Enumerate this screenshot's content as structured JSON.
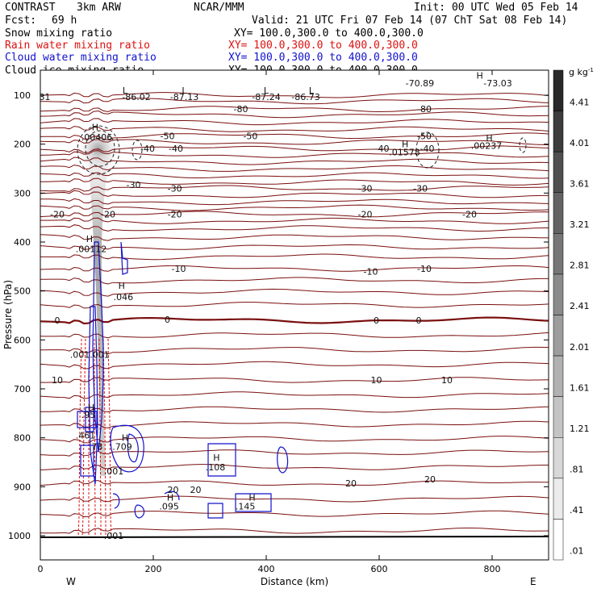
{
  "header": {
    "model": "CONTRAST",
    "config": "3km ARW",
    "org": "NCAR/MMM",
    "init": "Init: 00 UTC Wed 05 Feb 14",
    "fcst_label": "Fcst:",
    "fcst_value": "69 h",
    "valid": "Valid: 21 UTC Fri 07 Feb 14 (07 ChT Sat 08 Feb 14)"
  },
  "fields": [
    {
      "label": "Snow mixing ratio",
      "xy": "XY= 100.0,300.0 to 400.0,300.0",
      "color": "#000000"
    },
    {
      "label": "Rain water mixing ratio",
      "xy": "XY= 100.0,300.0 to 400.0,300.0",
      "color": "#dd1111"
    },
    {
      "label": "Cloud water mixing ratio",
      "xy": "XY= 100.0,300.0 to 400.0,300.0",
      "color": "#1111cc"
    },
    {
      "label": "Cloud ice mixing ratio",
      "xy": "XY= 100.0,300.0 to 400.0,300.0",
      "color": "#000000"
    }
  ],
  "colors": {
    "temperature": "#7a0f0f",
    "zero_isotherm": "#7a0f0f",
    "rain": "#dd1111",
    "cloud_water": "#1111cc",
    "ice": "#000000",
    "snow_shading": "#777777"
  },
  "chart_data": {
    "type": "contour cross-section",
    "xlabel": "Distance (km)",
    "ylabel": "Pressure (hPa)",
    "xlim": [
      0,
      900
    ],
    "ylim": [
      1045,
      50
    ],
    "x_ticks": [
      "0",
      "200",
      "400",
      "600",
      "800"
    ],
    "y_ticks": [
      "100",
      "200",
      "300",
      "400",
      "500",
      "600",
      "700",
      "800",
      "900",
      "1000"
    ],
    "x_end_labels": {
      "left": "W",
      "right": "E"
    },
    "colorbar": {
      "unit": "g kg",
      "unit_exp": "-1",
      "ticks": [
        "4.41",
        "4.01",
        "3.61",
        "3.21",
        "2.81",
        "2.41",
        "2.01",
        "1.61",
        "1.21",
        ".81",
        ".41",
        ".01"
      ]
    },
    "temperature_contours": [
      {
        "label": "-80",
        "p": 128
      },
      {
        "label": "-50",
        "p": 183
      },
      {
        "label": "-40",
        "p": 209
      },
      {
        "label": "-30",
        "p": 290
      },
      {
        "label": "-20",
        "p": 343
      },
      {
        "label": "-10",
        "p": 454
      },
      {
        "label": "0",
        "p": 560
      },
      {
        "label": "10",
        "p": 682
      },
      {
        "label": "20",
        "p": 893
      }
    ],
    "contour_labels": [
      {
        "text": "-31",
        "x": 5,
        "p": 103
      },
      {
        "text": "-86.02",
        "x": 170,
        "p": 103
      },
      {
        "text": "-87.13",
        "x": 255,
        "p": 103
      },
      {
        "text": "-87.24",
        "x": 400,
        "p": 103
      },
      {
        "text": "-86.73",
        "x": 470,
        "p": 103
      },
      {
        "text": "-70.89",
        "x": 672,
        "p": 75
      },
      {
        "text": "-73.03",
        "x": 810,
        "p": 75
      },
      {
        "text": "-80",
        "x": 355,
        "p": 128
      },
      {
        "text": "-80",
        "x": 680,
        "p": 128
      },
      {
        "text": "-50",
        "x": 225,
        "p": 183
      },
      {
        "text": "-50",
        "x": 372,
        "p": 183
      },
      {
        "text": "-50",
        "x": 680,
        "p": 183
      },
      {
        "text": "-40",
        "x": 190,
        "p": 209
      },
      {
        "text": "-40",
        "x": 240,
        "p": 209
      },
      {
        "text": "-40",
        "x": 605,
        "p": 209
      },
      {
        "text": "-40",
        "x": 685,
        "p": 209
      },
      {
        "text": "-30",
        "x": 165,
        "p": 283
      },
      {
        "text": "-30",
        "x": 238,
        "p": 290
      },
      {
        "text": "-30",
        "x": 575,
        "p": 290
      },
      {
        "text": "-30",
        "x": 673,
        "p": 290
      },
      {
        "text": "-20",
        "x": 30,
        "p": 343
      },
      {
        "text": "-20",
        "x": 120,
        "p": 343
      },
      {
        "text": "-20",
        "x": 238,
        "p": 343
      },
      {
        "text": "-20",
        "x": 575,
        "p": 343
      },
      {
        "text": "-20",
        "x": 760,
        "p": 343
      },
      {
        "text": "-10",
        "x": 245,
        "p": 454
      },
      {
        "text": "-10",
        "x": 585,
        "p": 460
      },
      {
        "text": "-10",
        "x": 680,
        "p": 454
      },
      {
        "text": "0",
        "x": 30,
        "p": 560
      },
      {
        "text": "0",
        "x": 225,
        "p": 558
      },
      {
        "text": "0",
        "x": 595,
        "p": 560
      },
      {
        "text": "0",
        "x": 670,
        "p": 560
      },
      {
        "text": "10",
        "x": 30,
        "p": 682
      },
      {
        "text": "10",
        "x": 595,
        "p": 682
      },
      {
        "text": "10",
        "x": 720,
        "p": 682
      },
      {
        "text": "20",
        "x": 235,
        "p": 906
      },
      {
        "text": "20",
        "x": 275,
        "p": 906
      },
      {
        "text": "20",
        "x": 550,
        "p": 893
      },
      {
        "text": "20",
        "x": 690,
        "p": 885
      },
      {
        "text": ".00406",
        "x": 100,
        "p": 186
      },
      {
        "text": ".01578",
        "x": 645,
        "p": 216
      },
      {
        "text": ".00237",
        "x": 790,
        "p": 203
      },
      {
        "text": ".00112",
        "x": 90,
        "p": 414
      },
      {
        "text": ".046",
        "x": 147,
        "p": 512
      },
      {
        "text": ".001",
        "x": 70,
        "p": 630
      },
      {
        "text": ".001",
        "x": 105,
        "p": 630
      },
      {
        "text": ".95",
        "x": 85,
        "p": 753
      },
      {
        "text": ".461",
        "x": 80,
        "p": 795
      },
      {
        "text": ".73",
        "x": 98,
        "p": 818
      },
      {
        "text": ".709",
        "x": 145,
        "p": 818
      },
      {
        "text": ".001",
        "x": 130,
        "p": 868
      },
      {
        "text": ".108",
        "x": 310,
        "p": 860
      },
      {
        "text": ".095",
        "x": 228,
        "p": 940
      },
      {
        "text": ".145",
        "x": 363,
        "p": 940
      },
      {
        "text": ".001",
        "x": 130,
        "p": 1000
      }
    ],
    "extrema_markers": [
      {
        "text": "L",
        "x": 150,
        "p": 90
      },
      {
        "text": "L",
        "x": 255,
        "p": 90
      },
      {
        "text": "L",
        "x": 400,
        "p": 90
      },
      {
        "text": "L",
        "x": 480,
        "p": 90
      },
      {
        "text": "H",
        "x": 778,
        "p": 60
      },
      {
        "text": "H",
        "x": 97,
        "p": 165
      },
      {
        "text": "H",
        "x": 646,
        "p": 200
      },
      {
        "text": "H",
        "x": 795,
        "p": 187
      },
      {
        "text": "H",
        "x": 87,
        "p": 393
      },
      {
        "text": "H",
        "x": 144,
        "p": 489
      },
      {
        "text": "H",
        "x": 90,
        "p": 738
      },
      {
        "text": "H",
        "x": 150,
        "p": 800
      },
      {
        "text": "H",
        "x": 312,
        "p": 840
      },
      {
        "text": "H",
        "x": 230,
        "p": 922
      },
      {
        "text": "H",
        "x": 375,
        "p": 922
      }
    ]
  }
}
